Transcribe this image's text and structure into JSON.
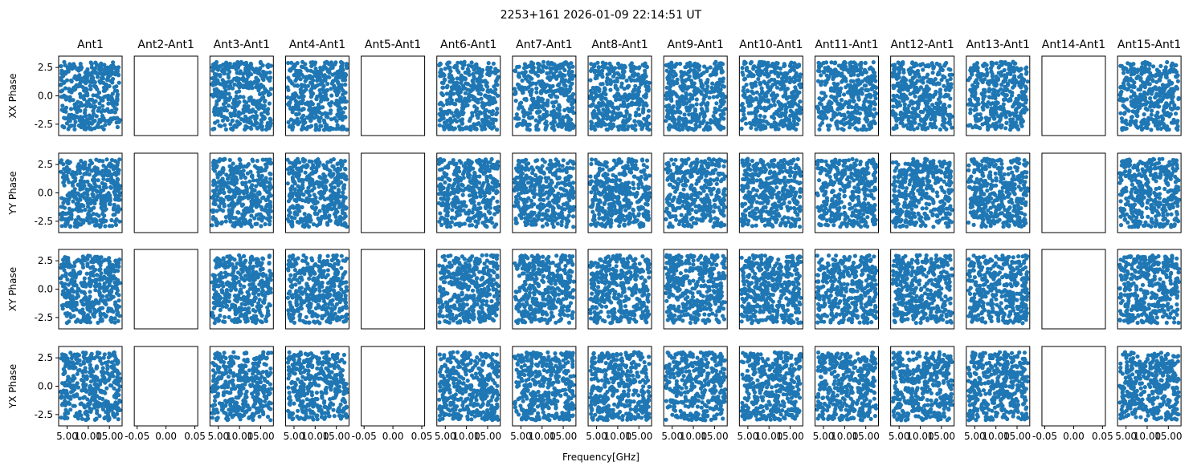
{
  "figure": {
    "suptitle": "2253+161 2026-01-09 22:14:51 UT",
    "xlabel": "Frequency[GHz]"
  },
  "chart_data": {
    "type": "scatter",
    "layout": "grid of 4 rows x 15 columns",
    "marker_color": "#1f77b4",
    "columns": [
      "Ant1",
      "Ant2-Ant1",
      "Ant3-Ant1",
      "Ant4-Ant1",
      "Ant5-Ant1",
      "Ant6-Ant1",
      "Ant7-Ant1",
      "Ant8-Ant1",
      "Ant9-Ant1",
      "Ant10-Ant1",
      "Ant11-Ant1",
      "Ant12-Ant1",
      "Ant13-Ant1",
      "Ant14-Ant1",
      "Ant15-Ant1"
    ],
    "rows": [
      "XX Phase",
      "YY Phase",
      "XY Phase",
      "YX Phase"
    ],
    "ylim": [
      -3.5,
      3.5
    ],
    "yticks": [
      "2.5",
      "0.0",
      "-2.5"
    ],
    "xlim_with_data": [
      3.0,
      18.0
    ],
    "xticks_with_data": [
      "5.00",
      "10.00",
      "15.00"
    ],
    "xlim_empty": [
      -0.055,
      0.055
    ],
    "xticks_empty": [
      "-0.05",
      "0.00",
      "0.05"
    ],
    "empty_columns": [
      "Ant2-Ant1",
      "Ant5-Ant1",
      "Ant14-Ant1"
    ],
    "approx_points_per_panel": 400,
    "freq_range_ghz": [
      3.5,
      17.5
    ],
    "phase_range_rad": [
      -3.0,
      3.0
    ]
  }
}
